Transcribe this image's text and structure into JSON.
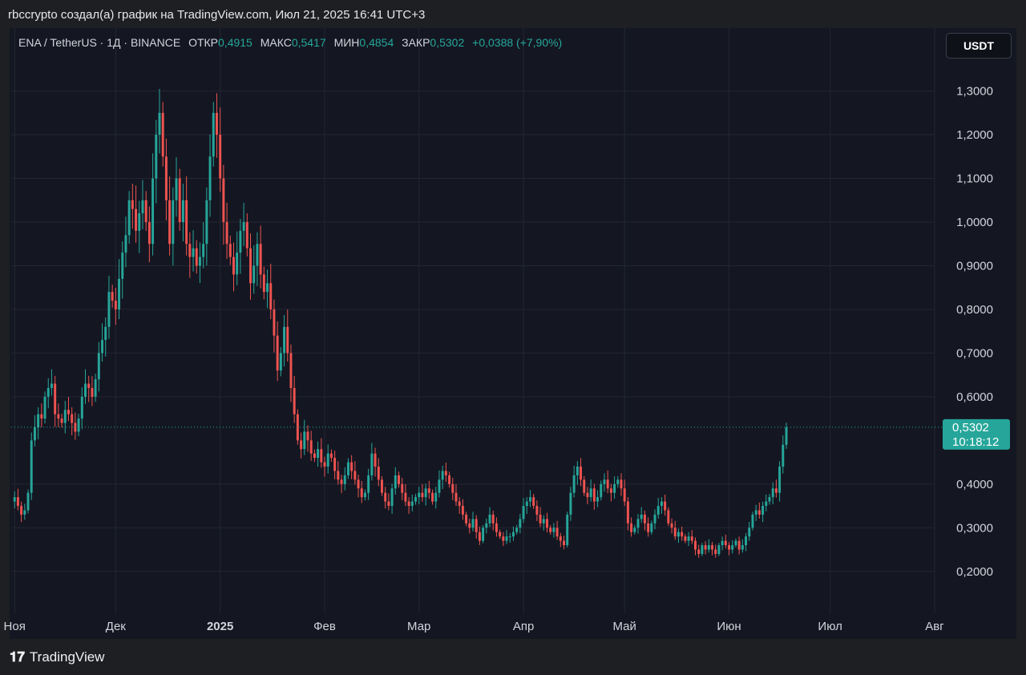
{
  "header": {
    "caption": "rbccrypto создал(а) график на TradingView.com, Июл 21, 2025 16:41 UTC+3"
  },
  "legend": {
    "symbol": "ENA / TetherUS · 1Д · BINANCE",
    "open_label": "ОТКР",
    "open": "0,4915",
    "high_label": "МАКС",
    "high": "0,5417",
    "low_label": "МИН",
    "low": "0,4854",
    "close_label": "ЗАКР",
    "close": "0,5302",
    "change": "+0,0388 (+7,90%)"
  },
  "currency_button": "USDT",
  "price_label": {
    "price": "0,5302",
    "countdown": "10:18:12"
  },
  "footer": {
    "brand": "TradingView"
  },
  "colors": {
    "up": "#26a69a",
    "down": "#ef5350",
    "background": "#141722",
    "grid": "#232733"
  },
  "chart_data": {
    "type": "candlestick",
    "y_ticks": [
      "1,3000",
      "1,2000",
      "1,1000",
      "1,0000",
      "0,9000",
      "0,8000",
      "0,7000",
      "0,6000",
      "0,4000",
      "0,3000",
      "0,2000"
    ],
    "y_tick_values": [
      1.3,
      1.2,
      1.1,
      1.0,
      0.9,
      0.8,
      0.7,
      0.6,
      0.4,
      0.3,
      0.2
    ],
    "x_ticks": [
      "Ноя",
      "Дек",
      "2025",
      "Фев",
      "Мар",
      "Апр",
      "Май",
      "Июн",
      "Июл",
      "Авг"
    ],
    "x_tick_dates": [
      "2024-11-01",
      "2024-12-01",
      "2025-01-01",
      "2025-02-01",
      "2025-03-01",
      "2025-04-01",
      "2025-05-01",
      "2025-06-01",
      "2025-07-01",
      "2025-08-01"
    ],
    "x_tick_bold": [
      false,
      false,
      true,
      false,
      false,
      false,
      false,
      false,
      false,
      false
    ],
    "start_date": "2024-10-31",
    "end_date": "2025-07-21",
    "close": [
      0.36,
      0.37,
      0.35,
      0.33,
      0.34,
      0.38,
      0.5,
      0.53,
      0.56,
      0.55,
      0.6,
      0.62,
      0.63,
      0.56,
      0.55,
      0.54,
      0.57,
      0.56,
      0.54,
      0.52,
      0.55,
      0.6,
      0.63,
      0.62,
      0.6,
      0.64,
      0.7,
      0.73,
      0.76,
      0.84,
      0.82,
      0.8,
      0.87,
      0.93,
      0.97,
      1.05,
      1.03,
      0.98,
      1.02,
      1.05,
      1.0,
      0.95,
      1.1,
      1.2,
      1.25,
      1.15,
      1.05,
      0.95,
      1.05,
      1.1,
      1.0,
      1.05,
      0.95,
      0.92,
      0.94,
      0.9,
      0.92,
      0.95,
      1.05,
      1.15,
      1.25,
      1.2,
      1.1,
      1.0,
      0.95,
      0.92,
      0.88,
      0.93,
      0.98,
      1.0,
      0.94,
      0.86,
      0.9,
      0.95,
      0.88,
      0.84,
      0.86,
      0.8,
      0.74,
      0.66,
      0.7,
      0.76,
      0.7,
      0.62,
      0.56,
      0.5,
      0.48,
      0.52,
      0.5,
      0.47,
      0.46,
      0.48,
      0.45,
      0.44,
      0.47,
      0.46,
      0.43,
      0.41,
      0.4,
      0.42,
      0.45,
      0.43,
      0.41,
      0.39,
      0.37,
      0.38,
      0.42,
      0.47,
      0.44,
      0.41,
      0.38,
      0.36,
      0.35,
      0.39,
      0.42,
      0.4,
      0.38,
      0.36,
      0.35,
      0.36,
      0.37,
      0.38,
      0.37,
      0.39,
      0.38,
      0.36,
      0.38,
      0.41,
      0.43,
      0.42,
      0.4,
      0.38,
      0.36,
      0.35,
      0.33,
      0.31,
      0.3,
      0.32,
      0.29,
      0.27,
      0.3,
      0.31,
      0.33,
      0.31,
      0.29,
      0.28,
      0.27,
      0.28,
      0.28,
      0.29,
      0.3,
      0.32,
      0.35,
      0.36,
      0.37,
      0.35,
      0.33,
      0.31,
      0.32,
      0.3,
      0.29,
      0.3,
      0.28,
      0.27,
      0.26,
      0.33,
      0.38,
      0.42,
      0.44,
      0.41,
      0.38,
      0.37,
      0.39,
      0.36,
      0.37,
      0.4,
      0.41,
      0.39,
      0.38,
      0.4,
      0.41,
      0.39,
      0.36,
      0.31,
      0.29,
      0.3,
      0.32,
      0.33,
      0.31,
      0.29,
      0.31,
      0.33,
      0.35,
      0.36,
      0.34,
      0.31,
      0.3,
      0.28,
      0.29,
      0.28,
      0.27,
      0.28,
      0.27,
      0.25,
      0.24,
      0.26,
      0.25,
      0.26,
      0.25,
      0.24,
      0.26,
      0.27,
      0.26,
      0.25,
      0.26,
      0.27,
      0.25,
      0.26,
      0.28,
      0.3,
      0.33,
      0.34,
      0.33,
      0.35,
      0.36,
      0.37,
      0.39,
      0.38,
      0.44,
      0.49,
      0.53
    ],
    "last_price": 0.5302,
    "ylim": [
      0.15,
      1.38
    ]
  }
}
